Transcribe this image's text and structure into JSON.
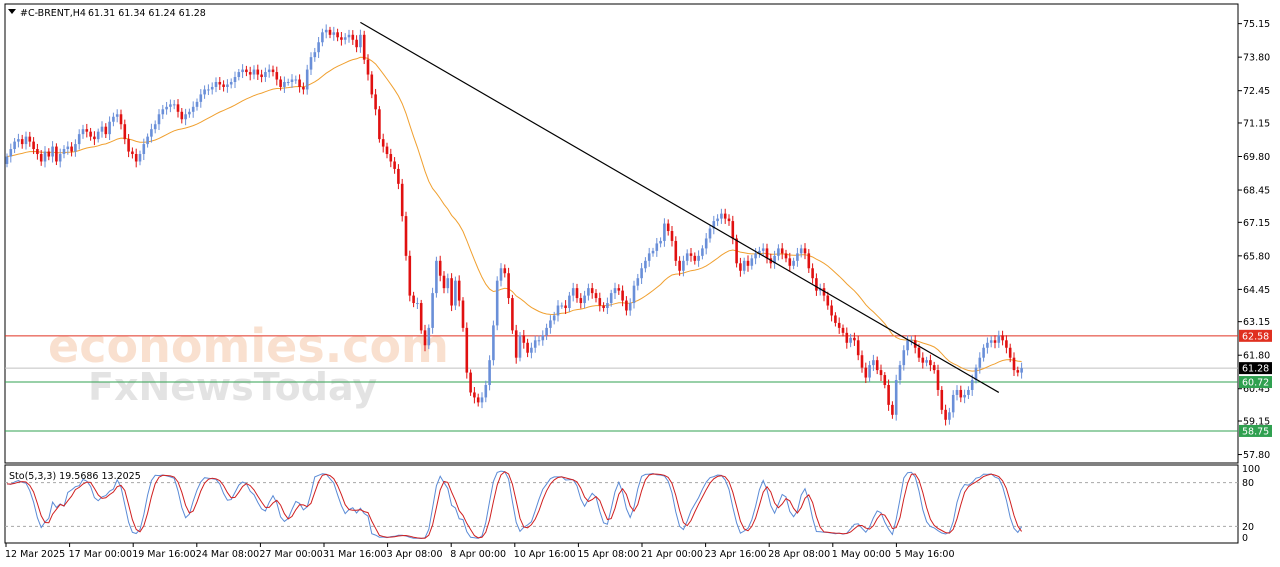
{
  "header": {
    "symbol": "#C-BRENT,H4",
    "ohlc": "61.31 61.34 61.24 61.28",
    "menu_icon": "triangle-down-icon"
  },
  "watermark": {
    "line1": "economies.com",
    "line2": "FxNewsToday"
  },
  "indicator": {
    "label": "Sto(5,3,3) 19.5686 13.2025",
    "levels": [
      "100",
      "80",
      "20",
      "0"
    ]
  },
  "colors": {
    "bull": "#6a8fd8",
    "bear": "#e01010",
    "ma": "#f0a030",
    "trendline": "#000000",
    "resistance": "#e03020",
    "support": "#30a050",
    "stoch_main": "#5b8bd6",
    "stoch_signal": "#d02020",
    "grid": "#c0c0c0"
  },
  "price_axis": {
    "ticks": [
      "75.15",
      "73.80",
      "72.45",
      "71.15",
      "69.80",
      "68.45",
      "67.15",
      "65.80",
      "64.45",
      "63.15",
      "61.80",
      "60.45",
      "59.15",
      "57.80"
    ],
    "tags": [
      {
        "label": "62.58",
        "value": 62.58,
        "color": "#e03020"
      },
      {
        "label": "61.28",
        "value": 61.28,
        "color": "#000000"
      },
      {
        "label": "60.72",
        "value": 60.72,
        "color": "#30a050"
      },
      {
        "label": "58.75",
        "value": 58.75,
        "color": "#30a050"
      }
    ]
  },
  "time_axis": {
    "labels": [
      "12 Mar 2025",
      "17 Mar 00:00",
      "19 Mar 16:00",
      "24 Mar 08:00",
      "27 Mar 00:00",
      "31 Mar 16:00",
      "3 Apr 08:00",
      "8 Apr 00:00",
      "10 Apr 16:00",
      "15 Apr 08:00",
      "21 Apr 00:00",
      "23 Apr 16:00",
      "28 Apr 08:00",
      "1 May 00:00",
      "5 May 16:00"
    ]
  },
  "chart_data": {
    "type": "candlestick",
    "timeframe": "H4",
    "ylim": [
      57.5,
      75.9
    ],
    "horizontal_levels": [
      62.58,
      61.28,
      60.72,
      58.75
    ],
    "trendline": {
      "from": {
        "bar": 93,
        "price": 75.2
      },
      "to": {
        "bar": 261,
        "price": 60.3
      }
    },
    "close": [
      69.8,
      70.1,
      70.4,
      70.5,
      70.3,
      70.6,
      70.4,
      70.1,
      69.9,
      69.6,
      70.0,
      69.8,
      70.2,
      69.6,
      69.9,
      70.1,
      70.2,
      70.0,
      70.3,
      70.7,
      70.9,
      70.8,
      70.6,
      70.5,
      70.8,
      71.0,
      70.7,
      71.2,
      71.4,
      71.5,
      71.1,
      70.5,
      70.0,
      69.9,
      69.6,
      69.9,
      70.3,
      70.6,
      70.9,
      71.1,
      71.5,
      71.7,
      71.8,
      71.9,
      71.9,
      71.6,
      71.3,
      71.5,
      71.6,
      71.8,
      72.0,
      72.3,
      72.5,
      72.5,
      72.6,
      72.8,
      72.7,
      72.6,
      72.7,
      72.8,
      73.0,
      73.2,
      73.3,
      73.2,
      73.1,
      73.3,
      73.1,
      73.0,
      73.2,
      73.3,
      73.2,
      72.9,
      72.6,
      72.8,
      72.8,
      72.9,
      72.9,
      72.6,
      72.5,
      73.3,
      73.8,
      74.0,
      74.4,
      74.8,
      74.9,
      74.7,
      74.8,
      74.6,
      74.5,
      74.6,
      74.7,
      74.5,
      74.2,
      74.7,
      73.7,
      73.1,
      72.3,
      71.7,
      70.5,
      70.2,
      69.9,
      69.6,
      69.3,
      68.7,
      67.4,
      65.8,
      64.2,
      63.9,
      63.9,
      62.8,
      62.2,
      62.9,
      64.3,
      65.6,
      65.0,
      64.5,
      64.9,
      63.8,
      64.8,
      64.0,
      62.9,
      61.1,
      60.3,
      60.1,
      59.9,
      60.1,
      60.6,
      61.6,
      63.0,
      64.8,
      65.3,
      65.1,
      64.1,
      62.8,
      61.7,
      62.6,
      62.3,
      61.9,
      62.1,
      62.4,
      62.4,
      62.6,
      62.9,
      63.2,
      63.4,
      63.8,
      63.8,
      63.7,
      64.2,
      64.5,
      64.1,
      63.9,
      64.2,
      64.5,
      64.3,
      64.1,
      63.8,
      63.7,
      63.9,
      64.3,
      64.5,
      64.4,
      64.0,
      63.6,
      63.9,
      64.6,
      64.9,
      65.3,
      65.6,
      65.9,
      66.0,
      66.3,
      66.4,
      67.1,
      66.8,
      66.4,
      65.6,
      65.2,
      65.6,
      65.9,
      65.8,
      65.6,
      65.8,
      66.1,
      66.5,
      66.9,
      67.2,
      67.3,
      67.5,
      67.3,
      67.2,
      66.5,
      65.5,
      65.2,
      65.6,
      65.4,
      65.7,
      65.9,
      66.0,
      66.1,
      65.7,
      65.5,
      65.8,
      66.1,
      65.9,
      65.7,
      65.4,
      65.6,
      65.9,
      66.1,
      65.9,
      65.3,
      64.9,
      64.4,
      64.5,
      64.2,
      63.8,
      63.4,
      63.1,
      62.9,
      62.7,
      62.3,
      62.5,
      62.4,
      61.8,
      61.3,
      60.9,
      61.4,
      61.6,
      61.2,
      61.0,
      60.6,
      59.8,
      59.4,
      60.8,
      61.4,
      62.0,
      62.4,
      62.4,
      62.1,
      61.7,
      61.5,
      61.6,
      61.4,
      61.2,
      60.4,
      59.6,
      59.2,
      59.5,
      60.2,
      60.4,
      60.1,
      60.2,
      60.4,
      60.8,
      61.3,
      61.7,
      62.1,
      62.3,
      62.4,
      62.3,
      62.6,
      62.4,
      62.1,
      61.7,
      61.2,
      61.1,
      61.28
    ],
    "stochastic": {
      "name": "Sto(5,3,3)",
      "main": 19.5686,
      "signal": 13.2025,
      "levels": [
        80,
        20
      ],
      "ylim": [
        0,
        100
      ]
    }
  }
}
